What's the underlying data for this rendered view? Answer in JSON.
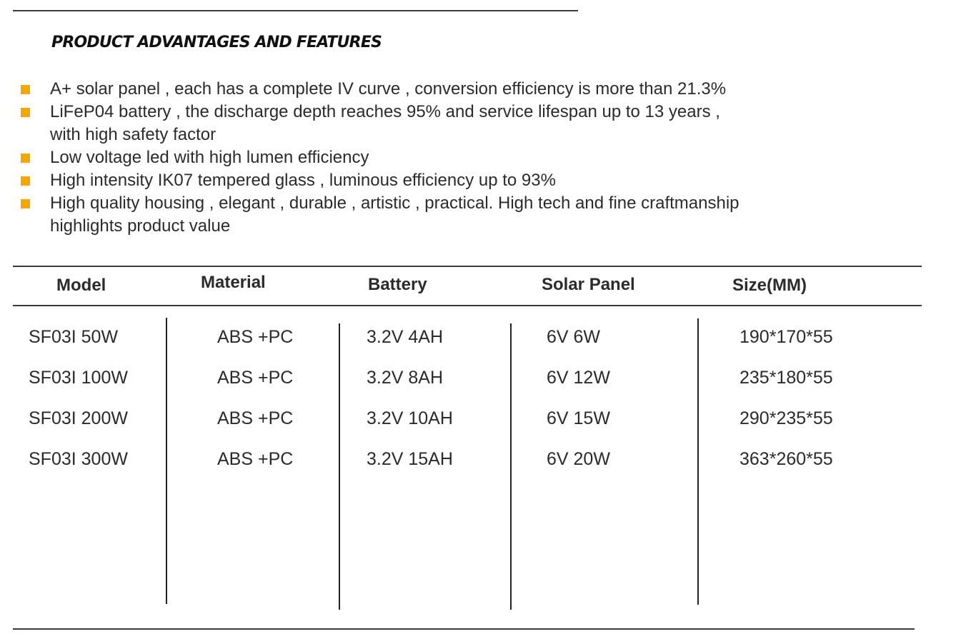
{
  "section_title": "PRODUCT ADVANTAGES AND FEATURES",
  "accent_color": "#f7a600",
  "bullet_icon": "square-bullet-icon",
  "features": [
    [
      "A+ solar panel , each has a complete IV curve , conversion efficiency is more than 21.3%"
    ],
    [
      "LiFeP04 battery , the discharge depth reaches 95% and service lifespan up to 13 years ,",
      "with high safety factor"
    ],
    [
      "Low voltage led with high lumen efficiency"
    ],
    [
      "High intensity IK07 tempered glass , luminous efficiency up to 93%"
    ],
    [
      "High quality  housing , elegant , durable , artistic , practical. High tech and fine craftmanship",
      "highlights product value"
    ]
  ],
  "table": {
    "headers": [
      "Model",
      "Material",
      "Battery",
      "Solar Panel",
      "Size(MM)"
    ],
    "rows": [
      [
        "SF03I 50W",
        "ABS +PC",
        "3.2V 4AH",
        "6V 6W",
        "190*170*55"
      ],
      [
        "SF03I 100W",
        "ABS +PC",
        "3.2V 8AH",
        "6V 12W",
        "235*180*55"
      ],
      [
        "SF03I 200W",
        "ABS +PC",
        "3.2V 10AH",
        "6V 15W",
        "290*235*55"
      ],
      [
        "SF03I 300W",
        "ABS +PC",
        "3.2V 15AH",
        "6V 20W",
        "363*260*55"
      ]
    ]
  }
}
